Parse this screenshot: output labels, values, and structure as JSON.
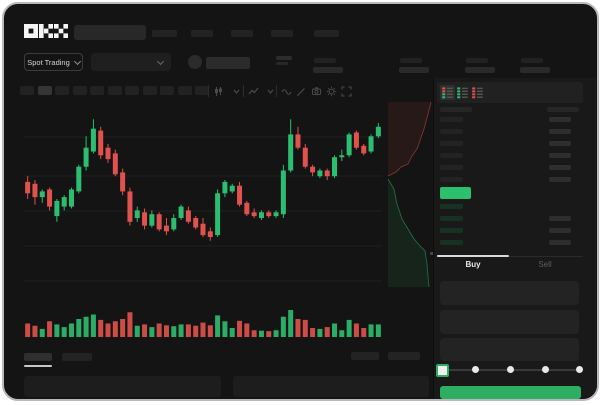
{
  "brand": "OKX",
  "colors": {
    "up": "#2dbd70",
    "down": "#e0524e",
    "button": "#2eae62",
    "price_box": "#2cc06c",
    "grid": "#1f1f1f",
    "ask_fill": "rgba(224,82,78,0.10)",
    "ask_line": "rgba(224,82,78,0.55)",
    "bid_fill": "rgba(46,189,112,0.10)",
    "bid_line": "rgba(46,189,112,0.55)",
    "bid_row_tint": "#173223"
  },
  "header": {
    "market_selector": "Spot Trading"
  },
  "trade_panel": {
    "buy_tab": "Buy",
    "sell_tab": "Sell"
  },
  "orderbook": {
    "ask_rows": 6,
    "bid_rows": 4,
    "bid_right_rows": 3
  },
  "chart": {
    "type": "candlestick",
    "gridlines": [
      33,
      72,
      107,
      142,
      177
    ],
    "candles": [
      [
        59,
        62,
        50,
        53,
        30
      ],
      [
        58,
        60,
        47,
        51,
        25
      ],
      [
        51,
        55,
        48,
        54,
        18
      ],
      [
        55,
        56,
        44,
        46,
        35
      ],
      [
        41,
        50,
        38,
        49,
        28
      ],
      [
        46,
        52,
        44,
        51,
        22
      ],
      [
        46,
        56,
        45,
        55,
        30
      ],
      [
        54,
        68,
        53,
        67,
        40
      ],
      [
        67,
        83,
        65,
        77,
        45
      ],
      [
        75,
        92,
        74,
        87,
        50
      ],
      [
        86,
        88,
        71,
        73,
        38
      ],
      [
        77,
        79,
        69,
        71,
        30
      ],
      [
        74,
        76,
        62,
        63,
        35
      ],
      [
        64,
        66,
        52,
        54,
        40
      ],
      [
        54,
        56,
        36,
        38,
        55
      ],
      [
        40,
        46,
        38,
        44,
        25
      ],
      [
        43,
        45,
        34,
        36,
        28
      ],
      [
        36,
        44,
        35,
        42,
        22
      ],
      [
        42,
        43,
        33,
        34,
        30
      ],
      [
        36,
        40,
        31,
        33,
        26
      ],
      [
        34,
        42,
        33,
        40,
        24
      ],
      [
        40,
        47,
        39,
        46,
        28
      ],
      [
        44,
        46,
        37,
        38,
        28
      ],
      [
        40,
        41,
        34,
        35,
        25
      ],
      [
        37,
        40,
        30,
        31,
        32
      ],
      [
        33,
        35,
        28,
        30,
        26
      ],
      [
        31,
        55,
        30,
        53,
        48
      ],
      [
        53,
        60,
        51,
        59,
        35
      ],
      [
        54,
        58,
        53,
        57,
        20
      ],
      [
        57,
        59,
        46,
        47,
        36
      ],
      [
        48,
        49,
        41,
        42,
        30
      ],
      [
        43,
        45,
        40,
        41,
        15
      ],
      [
        40,
        44,
        39,
        43,
        14
      ],
      [
        43,
        44,
        40,
        41,
        13
      ],
      [
        41,
        44,
        40,
        43,
        15
      ],
      [
        42,
        68,
        40,
        65,
        45
      ],
      [
        65,
        92,
        64,
        84,
        60
      ],
      [
        84,
        88,
        76,
        77,
        40
      ],
      [
        77,
        79,
        66,
        67,
        38
      ],
      [
        67,
        68,
        62,
        64,
        20
      ],
      [
        62,
        66,
        61,
        65,
        18
      ],
      [
        65,
        66,
        60,
        62,
        22
      ],
      [
        62,
        73,
        61,
        72,
        30
      ],
      [
        72,
        76,
        70,
        73,
        15
      ],
      [
        73,
        85,
        72,
        84,
        38
      ],
      [
        85,
        86,
        76,
        77,
        30
      ],
      [
        78,
        79,
        73,
        74,
        20
      ],
      [
        75,
        84,
        74,
        83,
        28
      ],
      [
        83,
        90,
        82,
        88,
        28
      ]
    ]
  },
  "depth": {
    "ask_area": [
      [
        4,
        3
      ],
      [
        47,
        3
      ],
      [
        44,
        15
      ],
      [
        40,
        30
      ],
      [
        33,
        50
      ],
      [
        28,
        57
      ],
      [
        24,
        65
      ],
      [
        17,
        68
      ],
      [
        12,
        73
      ],
      [
        4,
        77
      ]
    ],
    "bid_area": [
      [
        4,
        80
      ],
      [
        10,
        90
      ],
      [
        13,
        105
      ],
      [
        18,
        120
      ],
      [
        24,
        130
      ],
      [
        30,
        140
      ],
      [
        36,
        147
      ],
      [
        41,
        152
      ],
      [
        43,
        165
      ],
      [
        44,
        177
      ],
      [
        45,
        188
      ],
      [
        4,
        188
      ]
    ]
  }
}
